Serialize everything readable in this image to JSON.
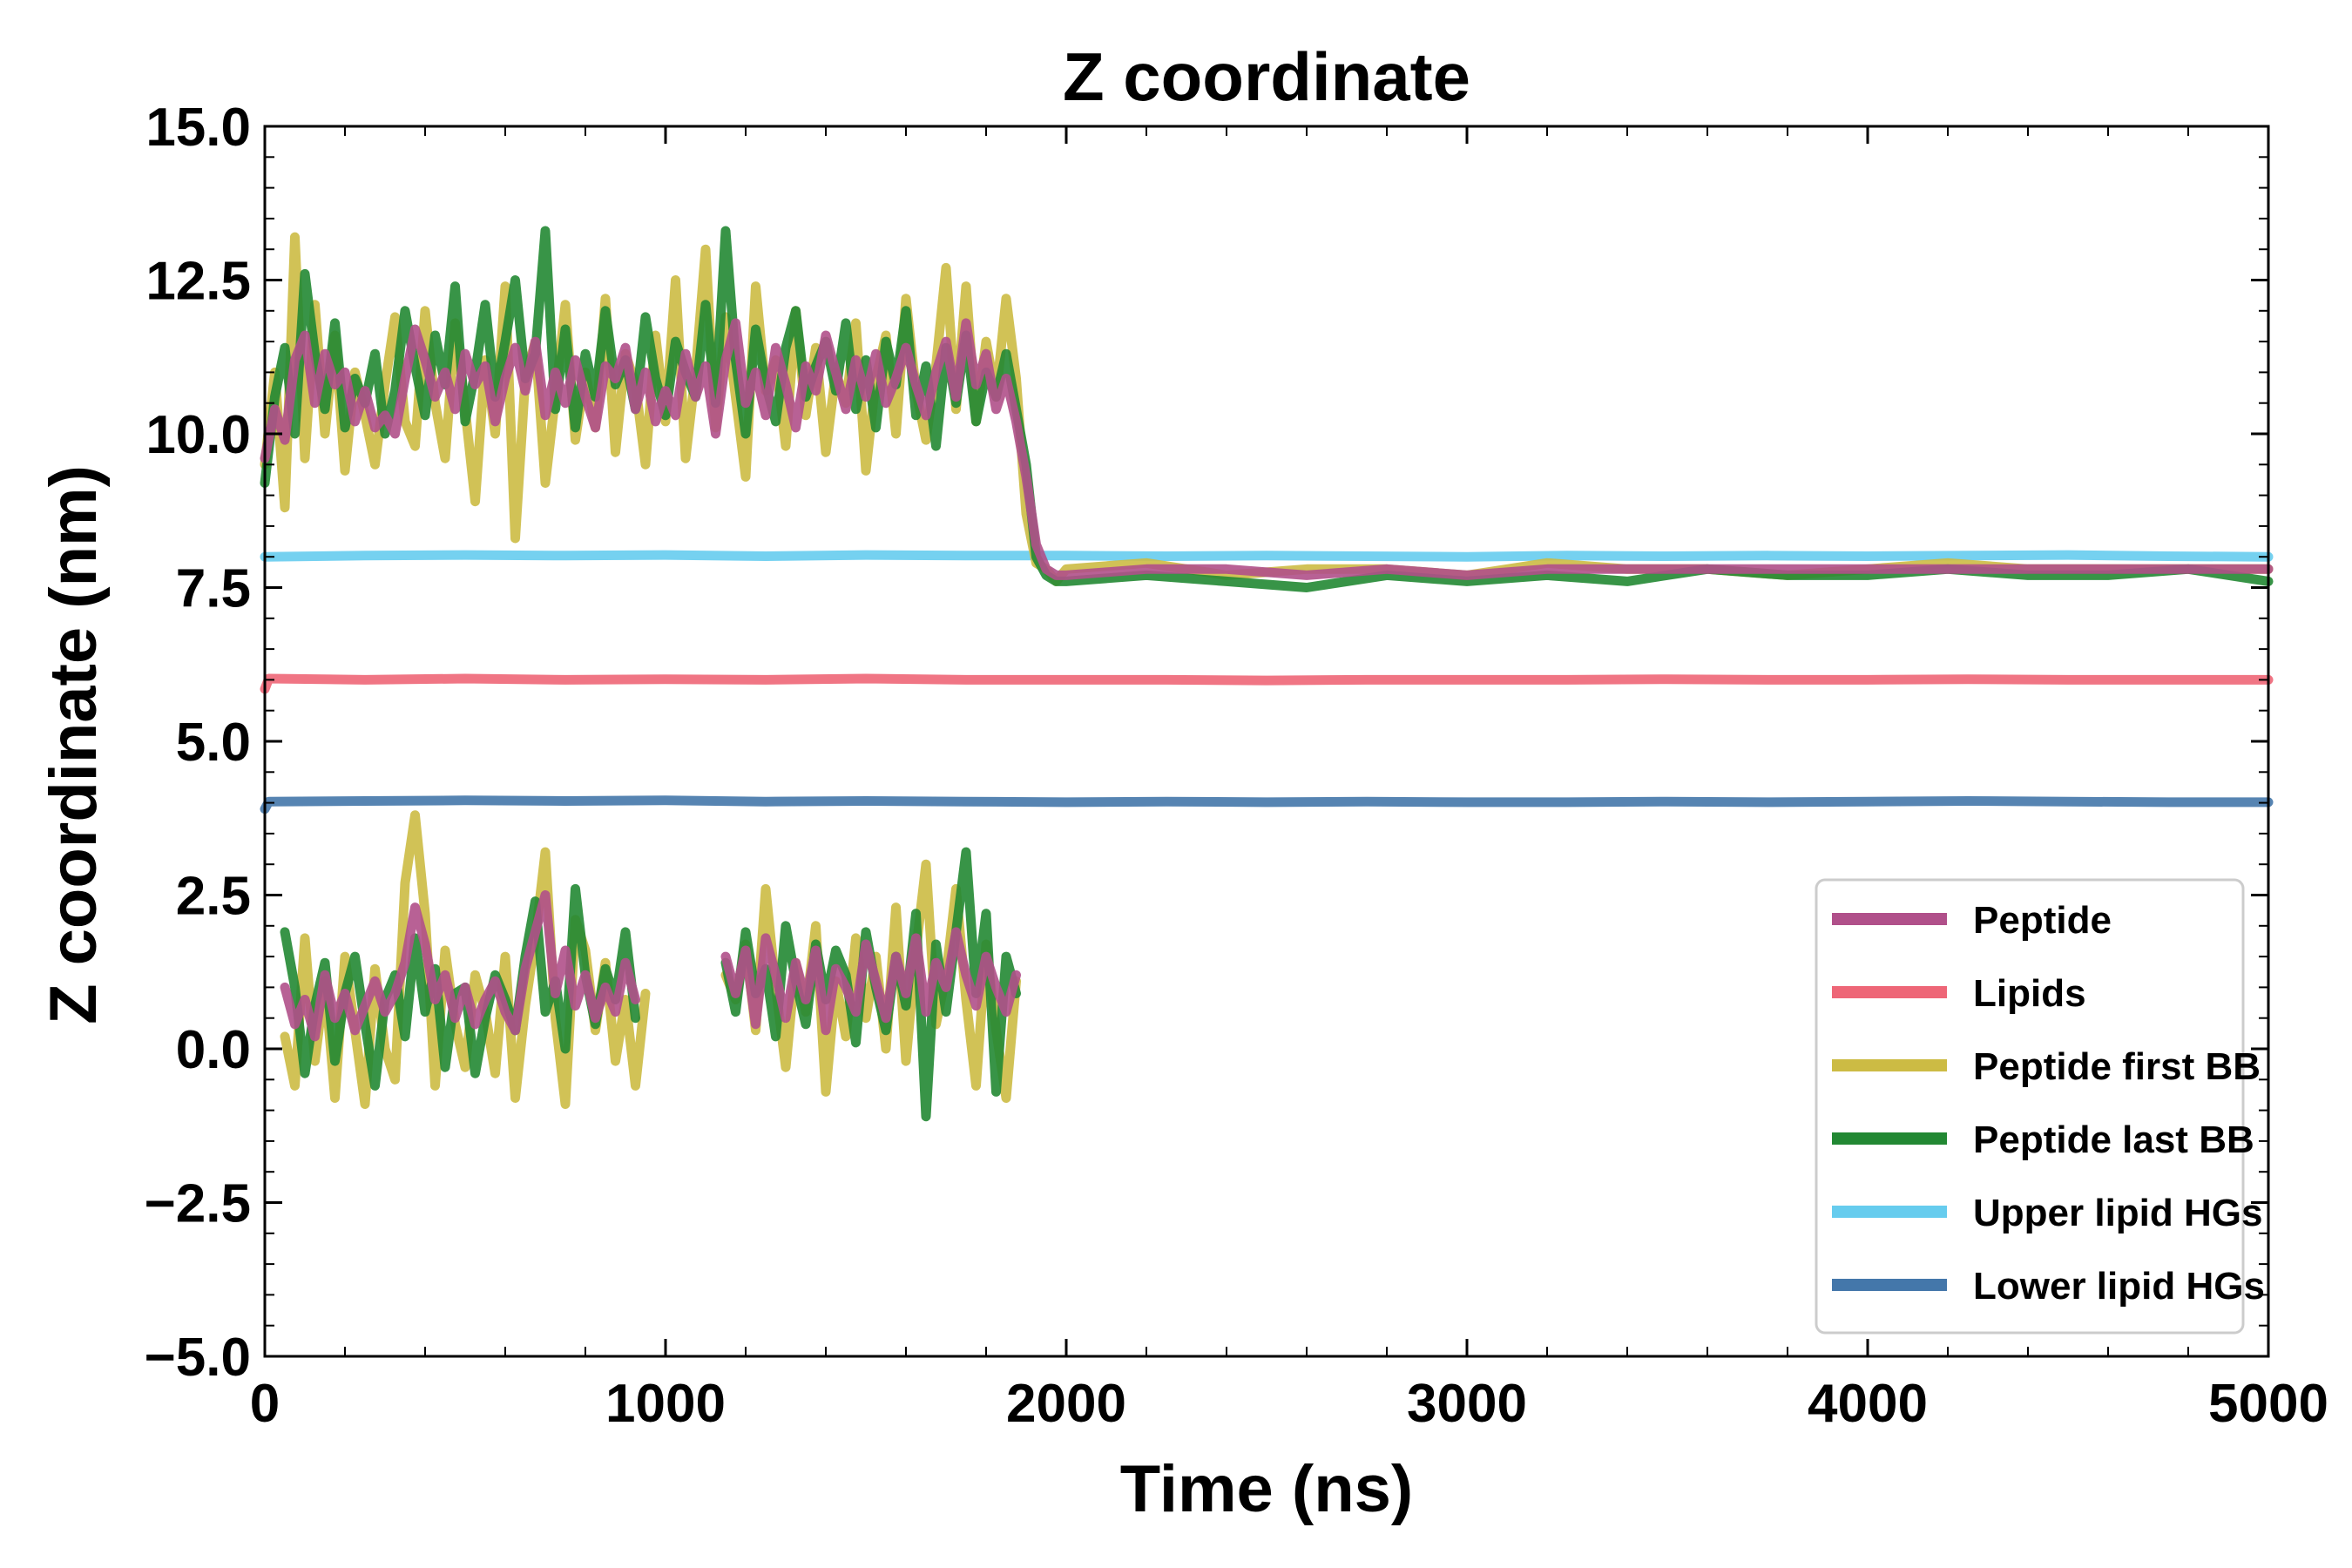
{
  "chart_data": {
    "type": "line",
    "title": "Z coordinate",
    "xlabel": "Time (ns)",
    "ylabel": "Z coordinate (nm)",
    "xlim": [
      0,
      5000
    ],
    "ylim": [
      -5.0,
      15.0
    ],
    "xticks": [
      0,
      1000,
      2000,
      3000,
      4000,
      5000
    ],
    "xtick_labels": [
      "0",
      "1000",
      "2000",
      "3000",
      "4000",
      "5000"
    ],
    "yticks": [
      -5.0,
      -2.5,
      0.0,
      2.5,
      5.0,
      7.5,
      10.0,
      12.5,
      15.0
    ],
    "ytick_labels": [
      "−5.0",
      "−2.5",
      "0.0",
      "2.5",
      "5.0",
      "7.5",
      "10.0",
      "12.5",
      "15.0"
    ],
    "grid": false,
    "legend_position": "lower-right",
    "series": [
      {
        "name": "Peptide",
        "color": "#b0508a",
        "x": [
          0,
          25,
          50,
          75,
          100,
          125,
          150,
          175,
          200,
          225,
          250,
          275,
          300,
          325,
          350,
          375,
          400,
          425,
          450,
          475,
          500,
          525,
          550,
          575,
          600,
          625,
          650,
          675,
          700,
          725,
          750,
          775,
          800,
          825,
          850,
          875,
          900,
          925,
          950,
          975,
          1000,
          1025,
          1050,
          1075,
          1100,
          1125,
          1150,
          1175,
          1200,
          1225,
          1250,
          1275,
          1300,
          1325,
          1350,
          1375,
          1400,
          1425,
          1450,
          1475,
          1500,
          1525,
          1550,
          1575,
          1600,
          1625,
          1650,
          1675,
          1700,
          1725,
          1750,
          1775,
          1800,
          1825,
          1850,
          1875,
          1900,
          1925,
          1950,
          1975,
          2000,
          2200,
          2400,
          2600,
          2800,
          3000,
          3200,
          3400,
          3600,
          3800,
          4000,
          4200,
          4400,
          4600,
          4800,
          5000
        ],
        "y": [
          9.6,
          10.4,
          9.9,
          11.2,
          11.6,
          10.5,
          11.3,
          10.8,
          11.0,
          10.2,
          10.7,
          10.1,
          10.3,
          10.0,
          10.9,
          11.7,
          11.2,
          10.6,
          11.0,
          10.4,
          11.3,
          10.8,
          11.1,
          10.2,
          10.9,
          11.4,
          10.7,
          11.5,
          10.3,
          11.0,
          10.5,
          11.2,
          10.6,
          10.1,
          11.1,
          10.9,
          11.4,
          10.4,
          11.0,
          10.2,
          10.7,
          10.3,
          11.3,
          10.6,
          11.1,
          10.0,
          11.2,
          11.8,
          10.5,
          11.0,
          10.3,
          11.4,
          10.8,
          10.1,
          11.1,
          10.7,
          11.6,
          11.0,
          10.4,
          11.2,
          10.6,
          11.3,
          10.5,
          10.9,
          11.4,
          10.8,
          10.3,
          11.0,
          11.5,
          10.6,
          11.8,
          10.8,
          11.3,
          10.4,
          10.9,
          10.2,
          9.3,
          8.2,
          7.8,
          7.7,
          7.7,
          7.8,
          7.8,
          7.7,
          7.8,
          7.7,
          7.8,
          7.8,
          7.8,
          7.8,
          7.8,
          7.8,
          7.8,
          7.8,
          7.8,
          7.8
        ]
      },
      {
        "name": "Lipids",
        "color": "#ee6677",
        "x": [
          0,
          10,
          250,
          500,
          750,
          1000,
          1250,
          1500,
          1750,
          2000,
          2250,
          2500,
          2750,
          3000,
          3250,
          3500,
          3750,
          4000,
          4250,
          4500,
          4750,
          5000
        ],
        "y": [
          5.85,
          6.02,
          6.0,
          6.02,
          6.0,
          6.01,
          6.0,
          6.02,
          6.0,
          6.0,
          6.0,
          5.99,
          6.0,
          6.0,
          6.0,
          6.01,
          6.0,
          6.0,
          6.01,
          6.0,
          6.0,
          6.0
        ]
      },
      {
        "name": "Peptide first BB",
        "color": "#ccbb44",
        "x": [
          0,
          25,
          50,
          75,
          100,
          125,
          150,
          175,
          200,
          225,
          250,
          275,
          300,
          325,
          350,
          375,
          400,
          425,
          450,
          475,
          500,
          525,
          550,
          575,
          600,
          625,
          650,
          675,
          700,
          725,
          750,
          775,
          800,
          825,
          850,
          875,
          900,
          925,
          950,
          975,
          1000,
          1025,
          1050,
          1075,
          1100,
          1125,
          1150,
          1175,
          1200,
          1225,
          1250,
          1275,
          1300,
          1325,
          1350,
          1375,
          1400,
          1425,
          1450,
          1475,
          1500,
          1525,
          1550,
          1575,
          1600,
          1625,
          1650,
          1675,
          1700,
          1725,
          1750,
          1775,
          1800,
          1825,
          1850,
          1875,
          1900,
          1925,
          1950,
          1975,
          2000,
          2200,
          2400,
          2600,
          2800,
          3000,
          3200,
          3400,
          3600,
          3800,
          4000,
          4200,
          4400,
          4600,
          4800,
          5000
        ],
        "y": [
          9.5,
          11.0,
          8.8,
          13.2,
          9.6,
          12.1,
          10.0,
          11.6,
          9.4,
          11.0,
          10.3,
          9.5,
          10.8,
          11.9,
          10.2,
          9.8,
          12.0,
          10.5,
          9.6,
          11.8,
          10.4,
          8.9,
          11.2,
          10.0,
          12.4,
          8.3,
          10.9,
          11.5,
          9.2,
          10.6,
          12.1,
          9.9,
          11.0,
          10.1,
          12.2,
          9.7,
          11.3,
          10.8,
          9.5,
          11.6,
          10.2,
          12.5,
          9.6,
          11.0,
          13.0,
          10.1,
          11.9,
          10.6,
          9.3,
          12.4,
          10.7,
          11.2,
          9.8,
          12.0,
          10.3,
          11.4,
          9.7,
          11.0,
          10.5,
          11.8,
          9.4,
          10.9,
          11.6,
          10.0,
          12.2,
          10.7,
          9.9,
          11.1,
          12.7,
          10.4,
          12.4,
          10.2,
          11.5,
          10.6,
          12.2,
          10.9,
          8.7,
          7.9,
          7.8,
          7.6,
          7.8,
          7.9,
          7.7,
          7.8,
          7.8,
          7.7,
          7.9,
          7.8,
          7.8,
          7.7,
          7.8,
          7.9,
          7.8,
          7.8,
          7.8,
          7.8
        ]
      },
      {
        "name": "Peptide last BB",
        "color": "#228833",
        "x": [
          0,
          25,
          50,
          75,
          100,
          125,
          150,
          175,
          200,
          225,
          250,
          275,
          300,
          325,
          350,
          375,
          400,
          425,
          450,
          475,
          500,
          525,
          550,
          575,
          600,
          625,
          650,
          675,
          700,
          725,
          750,
          775,
          800,
          825,
          850,
          875,
          900,
          925,
          950,
          975,
          1000,
          1025,
          1050,
          1075,
          1100,
          1125,
          1150,
          1175,
          1200,
          1225,
          1250,
          1275,
          1300,
          1325,
          1350,
          1375,
          1400,
          1425,
          1450,
          1475,
          1500,
          1525,
          1550,
          1575,
          1600,
          1625,
          1650,
          1675,
          1700,
          1725,
          1750,
          1775,
          1800,
          1825,
          1850,
          1875,
          1900,
          1925,
          1950,
          1975,
          2000,
          2200,
          2400,
          2600,
          2800,
          3000,
          3200,
          3400,
          3600,
          3800,
          4000,
          4200,
          4400,
          4600,
          4800,
          5000
        ],
        "y": [
          9.2,
          10.6,
          11.4,
          10.0,
          12.6,
          11.3,
          10.4,
          11.8,
          10.1,
          10.9,
          10.5,
          11.3,
          10.0,
          10.7,
          12.0,
          11.1,
          10.3,
          11.6,
          10.8,
          12.4,
          10.2,
          11.0,
          12.1,
          10.6,
          11.5,
          12.5,
          10.9,
          11.3,
          13.3,
          10.4,
          11.7,
          10.1,
          11.3,
          10.6,
          12.0,
          10.8,
          11.2,
          10.4,
          11.9,
          10.9,
          10.3,
          11.5,
          11.0,
          10.6,
          12.1,
          10.5,
          13.3,
          11.2,
          10.0,
          11.7,
          10.8,
          10.2,
          11.4,
          12.0,
          10.6,
          11.1,
          11.5,
          10.7,
          11.8,
          10.4,
          11.2,
          10.1,
          11.5,
          10.8,
          12.0,
          10.3,
          11.1,
          9.8,
          11.4,
          10.5,
          11.6,
          10.2,
          11.0,
          10.6,
          11.3,
          10.4,
          9.5,
          8.0,
          7.7,
          7.6,
          7.6,
          7.7,
          7.6,
          7.5,
          7.7,
          7.6,
          7.7,
          7.6,
          7.8,
          7.7,
          7.7,
          7.8,
          7.7,
          7.7,
          7.8,
          7.6
        ]
      },
      {
        "name": "Upper lipid HGs",
        "color": "#66ccee",
        "x": [
          0,
          250,
          500,
          750,
          1000,
          1250,
          1500,
          1750,
          2000,
          2250,
          2500,
          2750,
          3000,
          3250,
          3500,
          3750,
          4000,
          4250,
          4500,
          4750,
          5000
        ],
        "y": [
          8.0,
          8.02,
          8.03,
          8.02,
          8.03,
          8.01,
          8.03,
          8.02,
          8.02,
          8.01,
          8.02,
          8.01,
          8.0,
          8.02,
          8.01,
          8.02,
          8.01,
          8.02,
          8.03,
          8.01,
          8.0
        ]
      },
      {
        "name": "Lower lipid HGs",
        "color": "#4477aa",
        "x": [
          0,
          10,
          250,
          500,
          750,
          1000,
          1250,
          1500,
          1750,
          2000,
          2250,
          2500,
          2750,
          3000,
          3250,
          3500,
          3750,
          4000,
          4250,
          4500,
          4750,
          5000
        ],
        "y": [
          3.9,
          4.02,
          4.03,
          4.04,
          4.03,
          4.04,
          4.02,
          4.03,
          4.02,
          4.01,
          4.02,
          4.01,
          4.02,
          4.01,
          4.01,
          4.02,
          4.01,
          4.02,
          4.03,
          4.02,
          4.01,
          4.01
        ]
      },
      {
        "name": "",
        "color": "#ccbb44",
        "x": [
          50,
          75,
          100,
          125,
          150,
          175,
          200,
          225,
          250,
          275,
          300,
          325,
          350,
          375,
          400,
          425,
          450,
          475,
          500,
          525,
          550,
          575,
          600,
          625,
          650,
          675,
          700,
          725,
          750,
          775,
          800,
          825,
          850,
          875,
          900,
          925,
          950
        ],
        "y": [
          0.2,
          -0.6,
          1.8,
          -0.2,
          1.1,
          -0.8,
          1.5,
          0.3,
          -0.9,
          1.3,
          0.0,
          -0.5,
          2.7,
          3.8,
          2.2,
          -0.6,
          1.6,
          0.4,
          -0.3,
          1.2,
          0.6,
          -0.4,
          1.5,
          -0.8,
          0.7,
          1.8,
          3.2,
          0.5,
          -0.9,
          2.1,
          1.6,
          0.3,
          1.4,
          -0.2,
          0.8,
          -0.6,
          0.9
        ]
      },
      {
        "name": "",
        "color": "#ccbb44",
        "x": [
          1150,
          1175,
          1200,
          1225,
          1250,
          1275,
          1300,
          1325,
          1350,
          1375,
          1400,
          1425,
          1450,
          1475,
          1500,
          1525,
          1550,
          1575,
          1600,
          1625,
          1650,
          1675,
          1700,
          1725,
          1750,
          1775,
          1800,
          1825,
          1850,
          1875
        ],
        "y": [
          1.2,
          0.8,
          1.7,
          0.3,
          2.6,
          1.0,
          -0.3,
          1.4,
          0.6,
          2.0,
          -0.7,
          1.1,
          0.2,
          1.8,
          0.5,
          1.5,
          0.0,
          2.3,
          -0.2,
          1.6,
          3.0,
          0.4,
          1.2,
          2.6,
          0.8,
          -0.6,
          1.7,
          0.3,
          -0.8,
          1.1
        ]
      },
      {
        "name": "",
        "color": "#228833",
        "x": [
          50,
          75,
          100,
          125,
          150,
          175,
          200,
          225,
          250,
          275,
          300,
          325,
          350,
          375,
          400,
          425,
          450,
          475,
          500,
          525,
          550,
          575,
          600,
          625,
          650,
          675,
          700,
          725,
          750,
          775,
          800,
          825,
          850,
          875,
          900,
          925
        ],
        "y": [
          1.9,
          1.0,
          -0.4,
          0.7,
          1.4,
          -0.2,
          0.9,
          1.5,
          0.4,
          -0.6,
          0.8,
          1.2,
          0.2,
          1.8,
          0.6,
          1.3,
          -0.3,
          0.9,
          1.0,
          -0.4,
          0.5,
          1.2,
          0.8,
          0.3,
          1.5,
          2.4,
          0.6,
          1.1,
          0.0,
          2.6,
          1.2,
          0.4,
          1.3,
          0.8,
          1.9,
          0.5
        ]
      },
      {
        "name": "",
        "color": "#228833",
        "x": [
          1150,
          1175,
          1200,
          1225,
          1250,
          1275,
          1300,
          1325,
          1350,
          1375,
          1400,
          1425,
          1450,
          1475,
          1500,
          1525,
          1550,
          1575,
          1600,
          1625,
          1650,
          1675,
          1700,
          1725,
          1750,
          1775,
          1800,
          1825,
          1850,
          1875
        ],
        "y": [
          1.4,
          0.6,
          1.9,
          0.9,
          1.3,
          0.2,
          2.0,
          1.1,
          0.4,
          1.7,
          0.8,
          1.6,
          1.2,
          0.1,
          1.9,
          1.0,
          0.3,
          1.5,
          0.7,
          2.2,
          -1.1,
          1.7,
          0.6,
          1.9,
          3.2,
          0.9,
          2.2,
          -0.7,
          1.5,
          0.9
        ]
      },
      {
        "name": "",
        "color": "#b0508a",
        "x": [
          50,
          75,
          100,
          125,
          150,
          175,
          200,
          225,
          250,
          275,
          300,
          325,
          350,
          375,
          400,
          425,
          450,
          475,
          500,
          525,
          550,
          575,
          600,
          625,
          650,
          675,
          700,
          725,
          750,
          775,
          800,
          825,
          850,
          875,
          900,
          925
        ],
        "y": [
          1.0,
          0.4,
          0.8,
          0.2,
          1.2,
          0.5,
          0.9,
          0.3,
          0.7,
          1.1,
          0.6,
          0.9,
          1.4,
          2.3,
          1.7,
          0.8,
          1.2,
          0.5,
          1.0,
          0.4,
          0.8,
          1.1,
          0.6,
          0.3,
          1.3,
          1.9,
          2.5,
          0.9,
          1.6,
          0.7,
          1.2,
          0.5,
          1.0,
          0.6,
          1.4,
          0.8
        ]
      },
      {
        "name": "",
        "color": "#b0508a",
        "x": [
          1150,
          1175,
          1200,
          1225,
          1250,
          1275,
          1300,
          1325,
          1350,
          1375,
          1400,
          1425,
          1450,
          1475,
          1500,
          1525,
          1550,
          1575,
          1600,
          1625,
          1650,
          1675,
          1700,
          1725,
          1750,
          1775,
          1800,
          1825,
          1850,
          1875
        ],
        "y": [
          1.5,
          0.9,
          1.6,
          0.4,
          1.8,
          1.2,
          0.5,
          1.4,
          0.8,
          1.6,
          0.3,
          1.3,
          1.0,
          0.6,
          1.7,
          1.1,
          0.5,
          1.5,
          0.9,
          1.8,
          0.6,
          1.4,
          1.0,
          1.9,
          1.2,
          0.7,
          1.5,
          1.0,
          0.6,
          1.2
        ]
      }
    ],
    "legend": [
      {
        "name": "Peptide",
        "color": "#b0508a"
      },
      {
        "name": "Lipids",
        "color": "#ee6677"
      },
      {
        "name": "Peptide first BB",
        "color": "#ccbb44"
      },
      {
        "name": "Peptide last BB",
        "color": "#228833"
      },
      {
        "name": "Upper lipid HGs",
        "color": "#66ccee"
      },
      {
        "name": "Lower lipid HGs",
        "color": "#4477aa"
      }
    ]
  }
}
